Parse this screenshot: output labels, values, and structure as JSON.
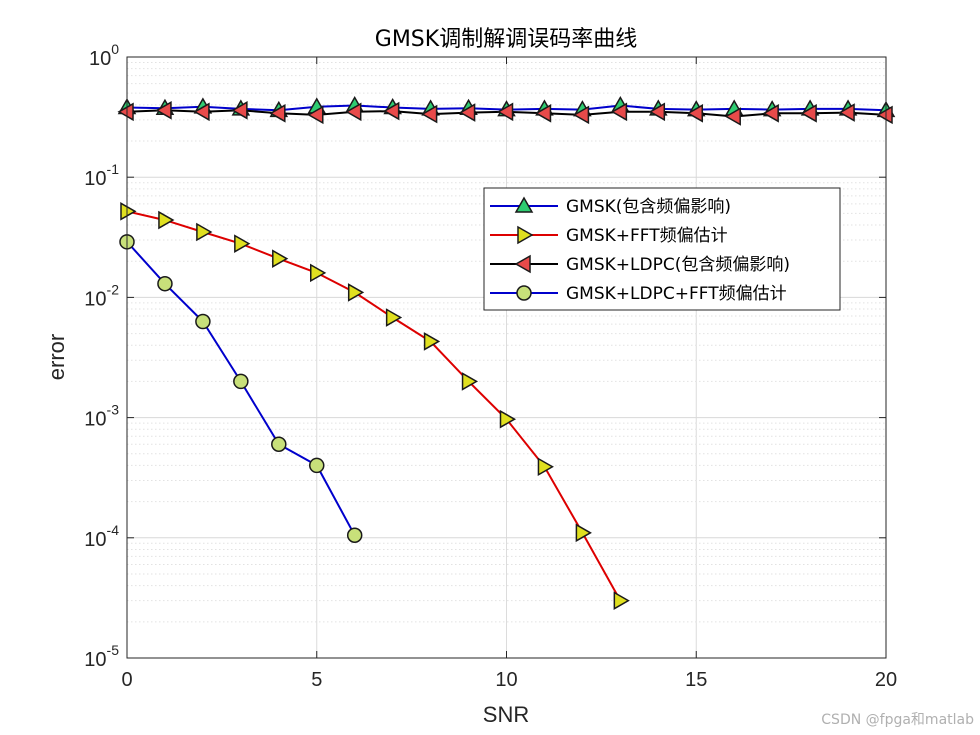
{
  "chart_data": {
    "type": "line",
    "title": "GMSK调制解调误码率曲线",
    "xlabel": "SNR",
    "ylabel": "error",
    "xlim": [
      0,
      20
    ],
    "ylim": [
      1e-05,
      1
    ],
    "yscale": "log",
    "grid": true,
    "minor_grid": true,
    "xticks": [
      0,
      5,
      10,
      15,
      20
    ],
    "xtick_labels": [
      "0",
      "5",
      "10",
      "15",
      "20"
    ],
    "yticks": [
      1e-05,
      0.0001,
      0.001,
      0.01,
      0.1,
      1
    ],
    "ytick_bases": [
      "10",
      "10",
      "10",
      "10",
      "10",
      "10"
    ],
    "ytick_exponents": [
      "-5",
      "-4",
      "-3",
      "-2",
      "-1",
      "0"
    ],
    "legend_position": "center-right",
    "series": [
      {
        "name": "GMSK(包含频偏影响)",
        "line_color": "#0000cc",
        "marker": "triangle-up",
        "marker_color": "#2ecc71",
        "x": [
          0,
          1,
          2,
          3,
          4,
          5,
          6,
          7,
          8,
          9,
          10,
          11,
          12,
          13,
          14,
          15,
          16,
          17,
          18,
          19,
          20
        ],
        "y": [
          0.38,
          0.375,
          0.385,
          0.37,
          0.36,
          0.385,
          0.395,
          0.38,
          0.37,
          0.375,
          0.365,
          0.37,
          0.365,
          0.395,
          0.37,
          0.365,
          0.37,
          0.365,
          0.37,
          0.37,
          0.36
        ]
      },
      {
        "name": "GMSK+FFT频偏估计",
        "line_color": "#dd0000",
        "marker": "triangle-right",
        "marker_color": "#e0e020",
        "x": [
          0,
          1,
          2,
          3,
          4,
          5,
          6,
          7,
          8,
          9,
          10,
          11,
          12,
          13
        ],
        "y": [
          0.052,
          0.044,
          0.035,
          0.028,
          0.021,
          0.016,
          0.011,
          0.0068,
          0.0043,
          0.002,
          0.00097,
          0.00039,
          0.00011,
          3e-05
        ]
      },
      {
        "name": "GMSK+LDPC(包含频偏影响)",
        "line_color": "#000000",
        "marker": "triangle-left",
        "marker_color": "#e84a4a",
        "x": [
          0,
          1,
          2,
          3,
          4,
          5,
          6,
          7,
          8,
          9,
          10,
          11,
          12,
          13,
          14,
          15,
          16,
          17,
          18,
          19,
          20
        ],
        "y": [
          0.35,
          0.36,
          0.35,
          0.36,
          0.34,
          0.33,
          0.35,
          0.355,
          0.335,
          0.345,
          0.35,
          0.34,
          0.33,
          0.35,
          0.35,
          0.34,
          0.32,
          0.34,
          0.34,
          0.345,
          0.33
        ]
      },
      {
        "name": "GMSK+LDPC+FFT频偏估计",
        "line_color": "#0000cc",
        "marker": "circle",
        "marker_color": "#c8e07a",
        "x": [
          0,
          1,
          2,
          3,
          4,
          5,
          6
        ],
        "y": [
          0.029,
          0.013,
          0.0063,
          0.002,
          0.0006,
          0.0004,
          0.000105
        ]
      }
    ],
    "watermark": "CSDN @fpga和matlab"
  }
}
